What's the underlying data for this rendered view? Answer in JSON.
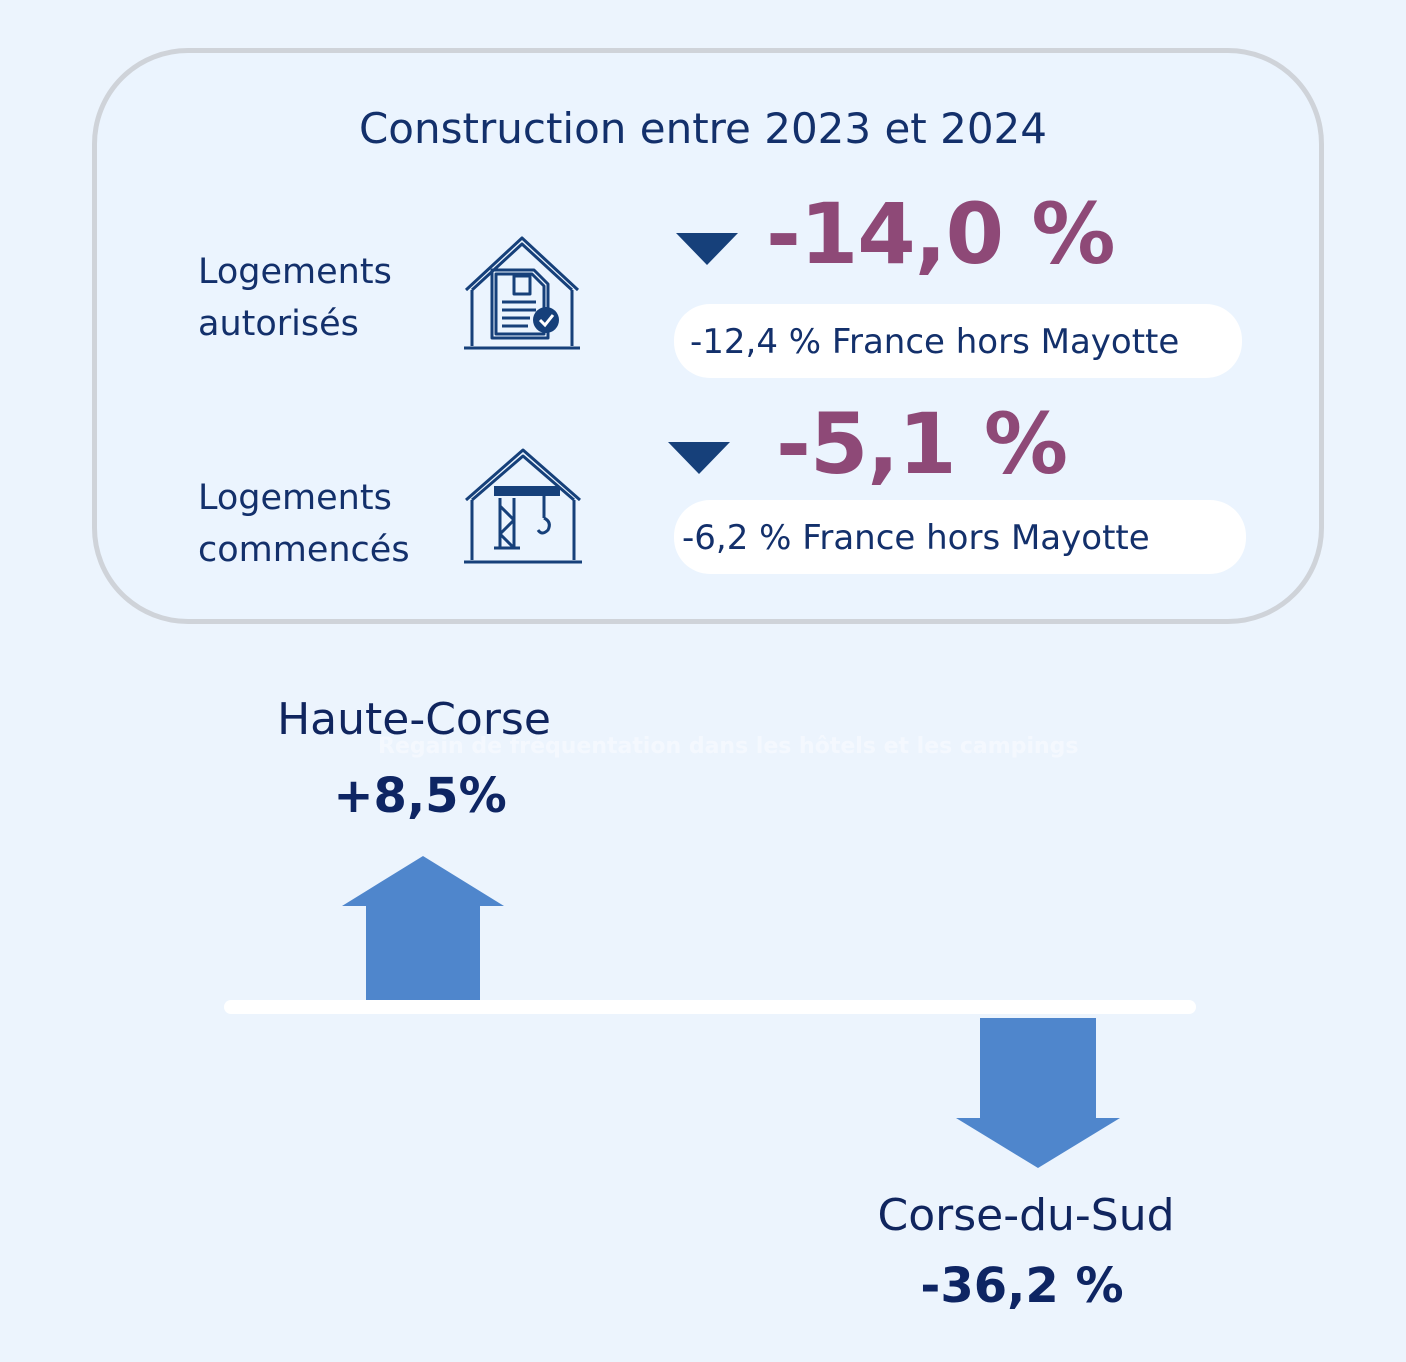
{
  "title": "Construction entre 2023 et 2024",
  "rows": [
    {
      "label_line1": "Logements",
      "label_line2": "autorisés",
      "icon": "house-document-check-icon",
      "trend": "down",
      "value": "-14,0 %",
      "comparison": "-12,4 % France hors Mayotte"
    },
    {
      "label_line1": "Logements",
      "label_line2": "commencés",
      "icon": "house-crane-icon",
      "trend": "down",
      "value": "-5,1 %",
      "comparison": "-6,2 % France hors Mayotte"
    }
  ],
  "faint_caption": "Regain de fréquentation dans les hôtels et les campings",
  "regions": [
    {
      "name": "Haute-Corse",
      "value": "+8,5%",
      "direction": "up"
    },
    {
      "name": "Corse-du-Sud",
      "value": "-36,2 %",
      "direction": "down"
    }
  ],
  "colors": {
    "background": "#ecf4fd",
    "panel_border": "#cfd3d9",
    "text_navy": "#13306b",
    "value_purple": "#8e4977",
    "arrow_blue": "#4f86cc",
    "triangle_navy": "#16407a"
  }
}
